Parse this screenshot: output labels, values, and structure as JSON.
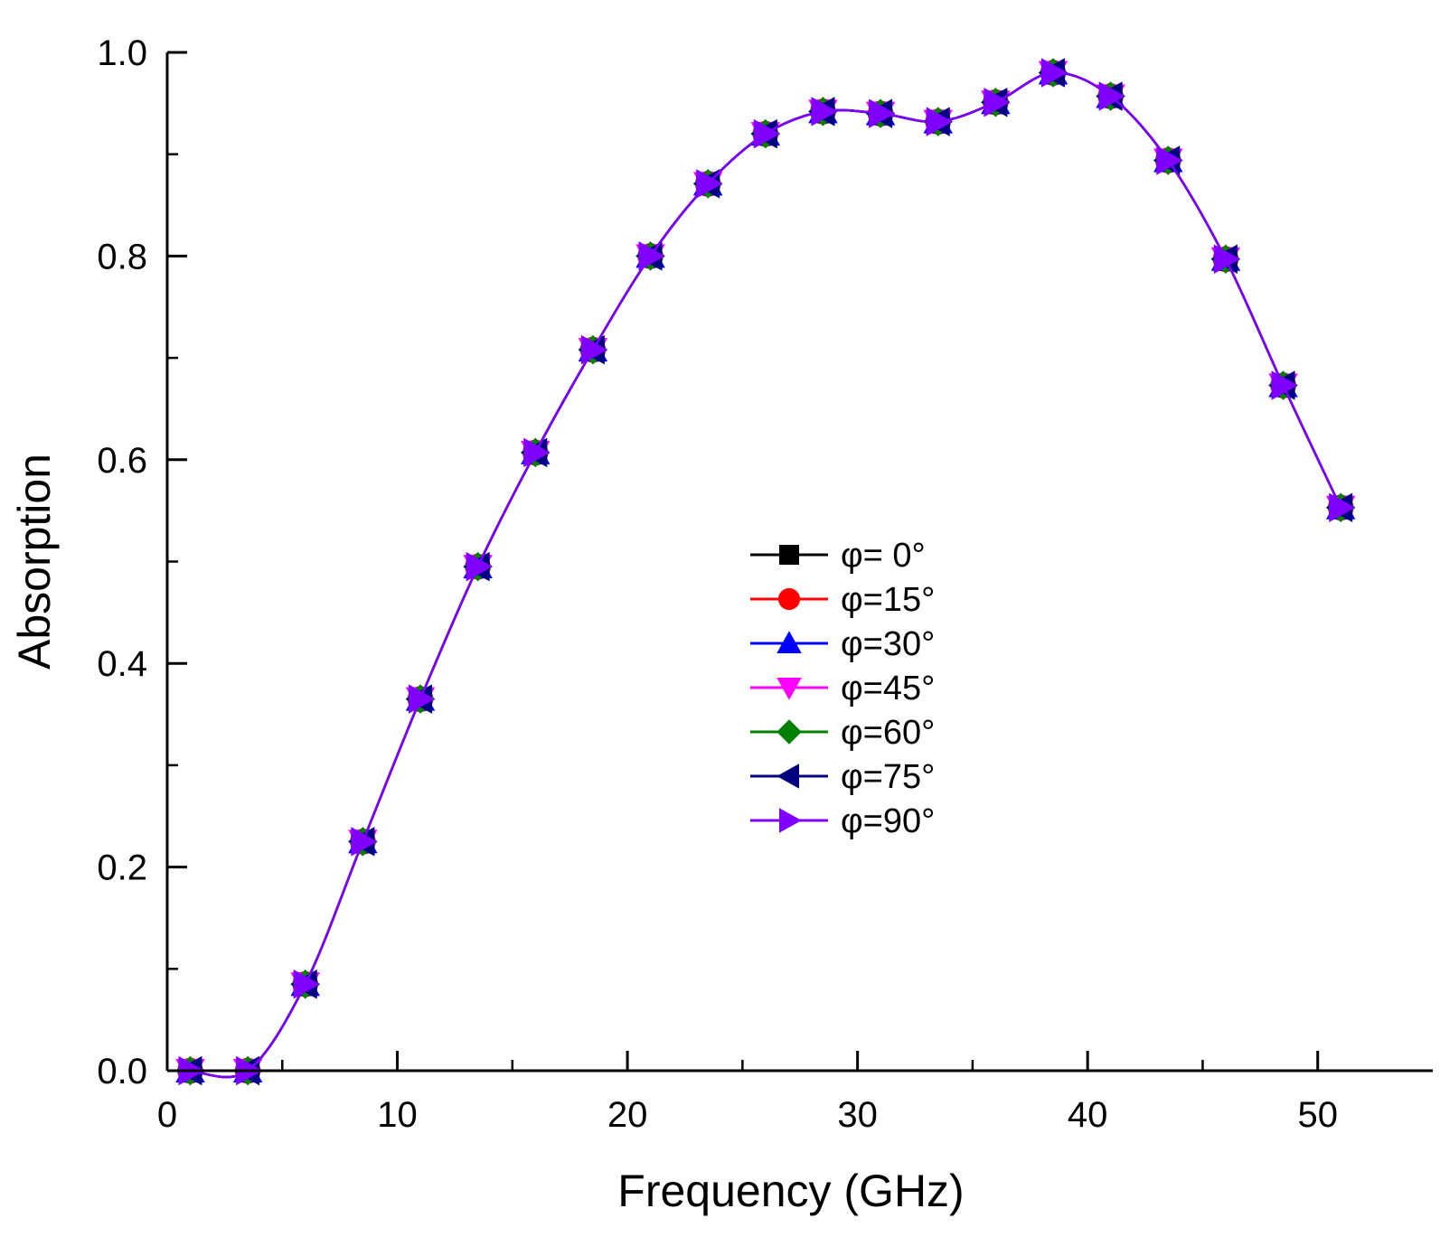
{
  "chart_data": {
    "type": "line",
    "title": "",
    "xlabel": "Frequency (GHz)",
    "ylabel": "Absorption",
    "xlim": [
      0,
      55
    ],
    "ylim": [
      0,
      1.0
    ],
    "x_ticks": [
      0,
      10,
      20,
      30,
      40,
      50
    ],
    "x_tick_labels": [
      "0",
      "10",
      "20",
      "30",
      "40",
      "50"
    ],
    "y_ticks": [
      0,
      0.2,
      0.4,
      0.6,
      0.8,
      1.0
    ],
    "y_tick_labels": [
      "0.0",
      "0.2",
      "0.4",
      "0.6",
      "0.8",
      "1.0"
    ],
    "grid": false,
    "legend_position": "center",
    "x": [
      1,
      3.5,
      6,
      8.5,
      11,
      13.5,
      16,
      18.5,
      21,
      23.5,
      26,
      28.5,
      31,
      33.5,
      36,
      38.5,
      41,
      43.5,
      46,
      48.5,
      51
    ],
    "series": [
      {
        "name": "φ= 0°",
        "color": "#000000",
        "marker": "square",
        "values": [
          0.0,
          0.0,
          0.085,
          0.225,
          0.365,
          0.495,
          0.607,
          0.708,
          0.8,
          0.871,
          0.92,
          0.942,
          0.94,
          0.932,
          0.951,
          0.98,
          0.957,
          0.894,
          0.797,
          0.673,
          0.553
        ]
      },
      {
        "name": "φ=15°",
        "color": "#ff0000",
        "marker": "circle",
        "values": [
          0.0,
          0.0,
          0.085,
          0.225,
          0.365,
          0.495,
          0.607,
          0.708,
          0.8,
          0.871,
          0.92,
          0.942,
          0.94,
          0.932,
          0.951,
          0.98,
          0.957,
          0.894,
          0.797,
          0.673,
          0.553
        ]
      },
      {
        "name": "φ=30°",
        "color": "#0000ff",
        "marker": "triangle-up",
        "values": [
          0.0,
          0.0,
          0.085,
          0.225,
          0.365,
          0.495,
          0.607,
          0.708,
          0.8,
          0.871,
          0.92,
          0.942,
          0.94,
          0.932,
          0.951,
          0.98,
          0.957,
          0.894,
          0.797,
          0.673,
          0.553
        ]
      },
      {
        "name": "φ=45°",
        "color": "#ff00ff",
        "marker": "triangle-down",
        "values": [
          0.0,
          0.0,
          0.085,
          0.225,
          0.365,
          0.495,
          0.607,
          0.708,
          0.8,
          0.871,
          0.92,
          0.942,
          0.94,
          0.932,
          0.951,
          0.98,
          0.957,
          0.894,
          0.797,
          0.673,
          0.553
        ]
      },
      {
        "name": "φ=60°",
        "color": "#008000",
        "marker": "diamond",
        "values": [
          0.0,
          0.0,
          0.085,
          0.225,
          0.365,
          0.495,
          0.607,
          0.708,
          0.8,
          0.871,
          0.92,
          0.942,
          0.94,
          0.932,
          0.951,
          0.98,
          0.957,
          0.894,
          0.797,
          0.673,
          0.553
        ]
      },
      {
        "name": "φ=75°",
        "color": "#000080",
        "marker": "triangle-left",
        "values": [
          0.0,
          0.0,
          0.085,
          0.225,
          0.365,
          0.495,
          0.607,
          0.708,
          0.8,
          0.871,
          0.92,
          0.942,
          0.94,
          0.932,
          0.951,
          0.98,
          0.957,
          0.894,
          0.797,
          0.673,
          0.553
        ]
      },
      {
        "name": "φ=90°",
        "color": "#8000ff",
        "marker": "triangle-right",
        "values": [
          0.0,
          0.0,
          0.085,
          0.225,
          0.365,
          0.495,
          0.607,
          0.708,
          0.8,
          0.871,
          0.92,
          0.942,
          0.94,
          0.932,
          0.951,
          0.98,
          0.957,
          0.894,
          0.797,
          0.673,
          0.553
        ]
      }
    ]
  }
}
